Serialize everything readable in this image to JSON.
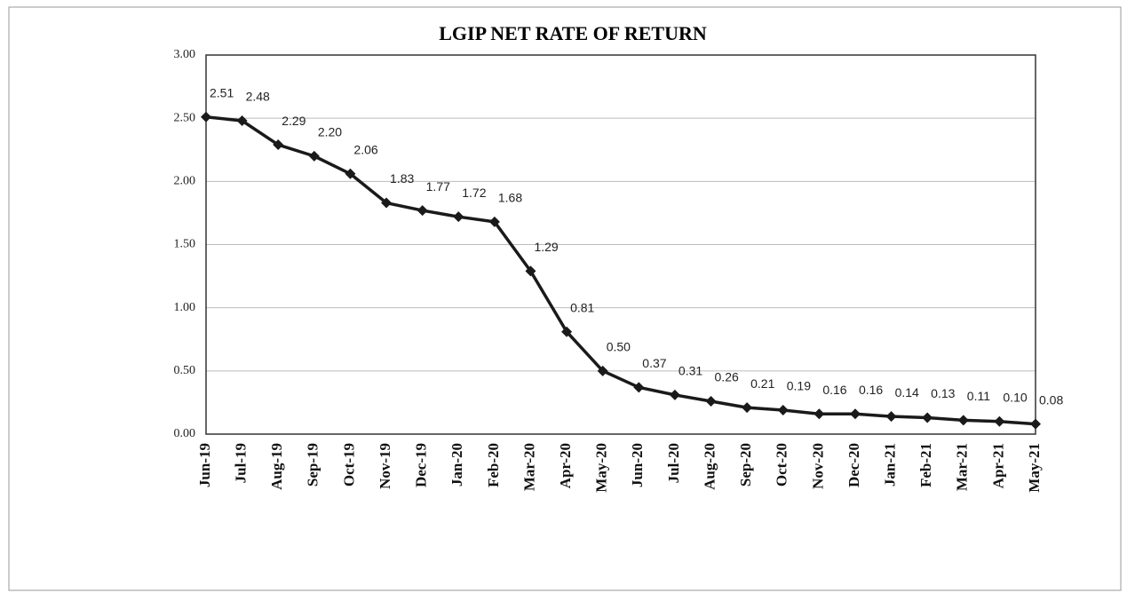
{
  "chart_data": {
    "type": "line",
    "title": "LGIP NET RATE OF RETURN",
    "categories": [
      "Jun-19",
      "Jul-19",
      "Aug-19",
      "Sep-19",
      "Oct-19",
      "Nov-19",
      "Dec-19",
      "Jan-20",
      "Feb-20",
      "Mar-20",
      "Apr-20",
      "May-20",
      "Jun-20",
      "Jul-20",
      "Aug-20",
      "Sep-20",
      "Oct-20",
      "Nov-20",
      "Dec-20",
      "Jan-21",
      "Feb-21",
      "Mar-21",
      "Apr-21",
      "May-21"
    ],
    "values": [
      2.51,
      2.48,
      2.29,
      2.2,
      2.06,
      1.83,
      1.77,
      1.72,
      1.68,
      1.29,
      0.81,
      0.5,
      0.37,
      0.31,
      0.26,
      0.21,
      0.19,
      0.16,
      0.16,
      0.14,
      0.13,
      0.11,
      0.1,
      0.08
    ],
    "value_labels": [
      "2.51",
      "2.48",
      "2.29",
      "2.20",
      "2.06",
      "1.83",
      "1.77",
      "1.72",
      "1.68",
      "1.29",
      "0.81",
      "0.50",
      "0.37",
      "0.31",
      "0.26",
      "0.21",
      "0.19",
      "0.16",
      "0.16",
      "0.14",
      "0.13",
      "0.11",
      "0.10",
      "0.08"
    ],
    "color": "#1a1a1a",
    "ylim": [
      0,
      3
    ],
    "yticks": [
      {
        "value": 0,
        "label": "0.00"
      },
      {
        "value": 0.5,
        "label": "0.50"
      },
      {
        "value": 1,
        "label": "1.00"
      },
      {
        "value": 1.5,
        "label": "1.50"
      },
      {
        "value": 2,
        "label": "2.00"
      },
      {
        "value": 2.5,
        "label": "2.50"
      },
      {
        "value": 3,
        "label": "3.00"
      }
    ],
    "grid": true
  }
}
